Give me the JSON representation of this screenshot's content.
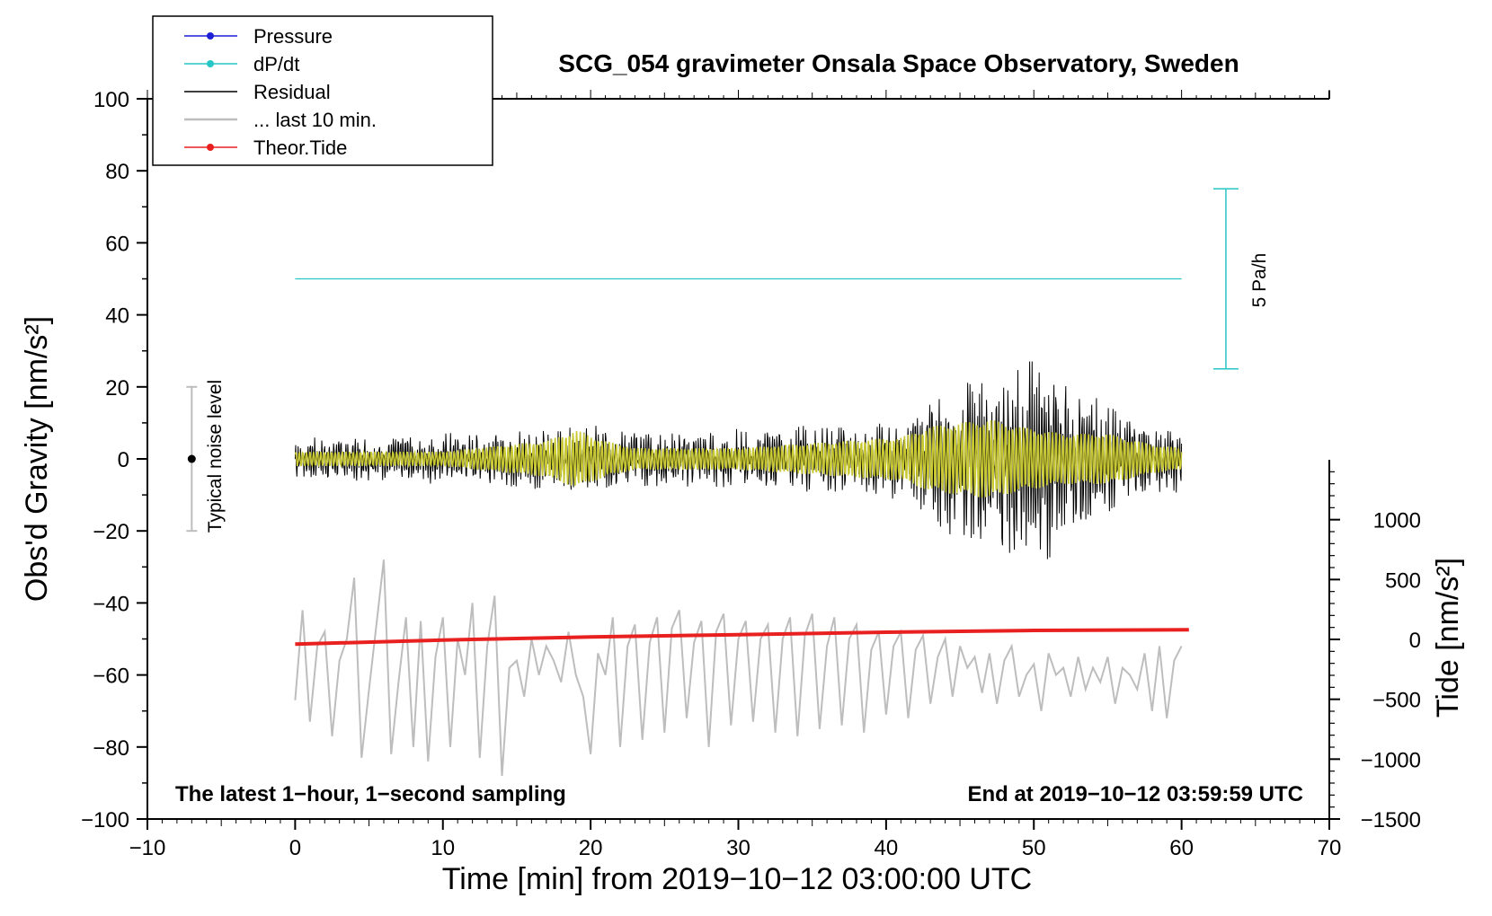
{
  "chart_data": {
    "type": "line",
    "title": "SCG_054 gravimeter Onsala Space Observatory, Sweden",
    "xlabel": "Time [min] from 2019−10−12 03:00:00 UTC",
    "ylabel_left": "Obs'd Gravity [nm/s²]",
    "ylabel_right": "Tide [nm/s²]",
    "xlim": [
      -10,
      70
    ],
    "ylim_left": [
      -100,
      100
    ],
    "ylim_right": [
      -1500,
      1500
    ],
    "x_ticks": [
      -10,
      0,
      10,
      20,
      30,
      40,
      50,
      60,
      70
    ],
    "x_tick_labels": [
      "−10",
      "0",
      "10",
      "20",
      "30",
      "40",
      "50",
      "60",
      "70"
    ],
    "y_ticks_left": [
      -100,
      -80,
      -60,
      -40,
      -20,
      0,
      20,
      40,
      60,
      80,
      100
    ],
    "y_tick_labels_left": [
      "−100",
      "−80",
      "−60",
      "−40",
      "−20",
      "0",
      "20",
      "40",
      "60",
      "80",
      "100"
    ],
    "y_ticks_right": [
      -1500,
      -1000,
      -500,
      0,
      500,
      1000
    ],
    "y_tick_labels_right": [
      "−1500",
      "−1000",
      "−500",
      "0",
      "500",
      "1000"
    ],
    "legend": {
      "position": "top-left",
      "entries": [
        {
          "label": "Pressure",
          "color": "#1f1fd6",
          "marker": true
        },
        {
          "label": "dP/dt",
          "color": "#26c6c6",
          "marker": true
        },
        {
          "label": "Residual",
          "color": "#000000",
          "marker": false
        },
        {
          "label": "... last 10 min.",
          "color": "#bdbdbd",
          "marker": false
        },
        {
          "label": "Theor.Tide",
          "color": "#e82020",
          "marker": true
        }
      ]
    },
    "annotations": {
      "bottom_left": "The latest 1−hour, 1−second sampling",
      "bottom_right": "End at 2019−10−12 03:59:59 UTC",
      "noise_label": "Typical noise level",
      "noise_bar": {
        "x": -7,
        "center": 0,
        "half_range": 20
      },
      "dpdt_scale_label": "5 Pa/h",
      "dpdt_scale_bar": {
        "x": 63,
        "y_low": 25,
        "y_high": 75
      }
    },
    "series": [
      {
        "name": "dP/dt",
        "color": "#26c6c6",
        "x": [
          0,
          60
        ],
        "y": [
          50,
          50
        ]
      },
      {
        "name": "Theor.Tide",
        "color": "#e82020",
        "axis": "right",
        "x": [
          0,
          10,
          20,
          30,
          40,
          50,
          60.5
        ],
        "y": [
          -40,
          -5,
          20,
          40,
          60,
          75,
          80
        ]
      },
      {
        "name": "... last 10 min.",
        "color": "#bdbdbd",
        "x": [
          0,
          0.5,
          1,
          1.5,
          2,
          2.5,
          3,
          3.5,
          4,
          4.5,
          5,
          5.5,
          6,
          6.5,
          7,
          7.5,
          8,
          8.5,
          9,
          9.5,
          10,
          10.5,
          11,
          11.5,
          12,
          12.5,
          13,
          13.5,
          14,
          14.5,
          15,
          15.5,
          16,
          16.5,
          17,
          17.5,
          18,
          18.5,
          19,
          19.5,
          20,
          20.5,
          21,
          21.5,
          22,
          22.5,
          23,
          23.5,
          24,
          24.5,
          25,
          25.5,
          26,
          26.5,
          27,
          27.5,
          28,
          28.5,
          29,
          29.5,
          30,
          30.5,
          31,
          31.5,
          32,
          32.5,
          33,
          33.5,
          34,
          34.5,
          35,
          35.5,
          36,
          36.5,
          37,
          37.5,
          38,
          38.5,
          39,
          39.5,
          40,
          40.5,
          41,
          41.5,
          42,
          42.5,
          43,
          43.5,
          44,
          44.5,
          45,
          45.5,
          46,
          46.5,
          47,
          47.5,
          48,
          48.5,
          49,
          49.5,
          50,
          50.5,
          51,
          51.5,
          52,
          52.5,
          53,
          53.5,
          54,
          54.5,
          55,
          55.5,
          56,
          56.5,
          57,
          57.5,
          58,
          58.5,
          59,
          59.5,
          60
        ],
        "y": [
          -67,
          -42,
          -73,
          -52,
          -48,
          -77,
          -56,
          -50,
          -33,
          -83,
          -64,
          -46,
          -28,
          -82,
          -62,
          -44,
          -80,
          -45,
          -84,
          -55,
          -44,
          -80,
          -50,
          -60,
          -40,
          -83,
          -52,
          -38,
          -88,
          -58,
          -56,
          -66,
          -50,
          -60,
          -52,
          -56,
          -62,
          -48,
          -60,
          -66,
          -82,
          -54,
          -60,
          -44,
          -80,
          -52,
          -46,
          -78,
          -51,
          -44,
          -76,
          -47,
          -42,
          -72,
          -51,
          -45,
          -80,
          -48,
          -43,
          -74,
          -50,
          -45,
          -73,
          -50,
          -46,
          -76,
          -50,
          -44,
          -77,
          -49,
          -43,
          -75,
          -52,
          -44,
          -74,
          -50,
          -46,
          -76,
          -53,
          -48,
          -71,
          -52,
          -48,
          -72,
          -53,
          -49,
          -68,
          -55,
          -50,
          -66,
          -52,
          -58,
          -55,
          -65,
          -54,
          -68,
          -56,
          -52,
          -66,
          -60,
          -57,
          -70,
          -54,
          -60,
          -58,
          -66,
          -55,
          -64,
          -58,
          -62,
          -55,
          -68,
          -58,
          -60,
          -64,
          -54,
          -70,
          -52,
          -72,
          -56,
          -52
        ]
      }
    ],
    "residual_envelope": {
      "x": [
        0,
        5,
        10,
        15,
        20,
        25,
        30,
        35,
        40,
        42,
        44,
        46,
        48,
        50,
        51,
        52,
        54,
        56,
        58,
        60
      ],
      "amplitude": [
        6,
        6,
        7,
        8,
        9,
        8,
        8,
        9,
        10,
        15,
        20,
        22,
        27,
        26,
        31,
        26,
        17,
        12,
        10,
        9
      ]
    },
    "smoothed_envelope": {
      "x": [
        0,
        10,
        17,
        19,
        21,
        23,
        30,
        41,
        43,
        47,
        49,
        52,
        55,
        58,
        60
      ],
      "amplitude": [
        2,
        2,
        5,
        8,
        5,
        3,
        3,
        6,
        9,
        11,
        9,
        7,
        7,
        4,
        3
      ]
    }
  }
}
